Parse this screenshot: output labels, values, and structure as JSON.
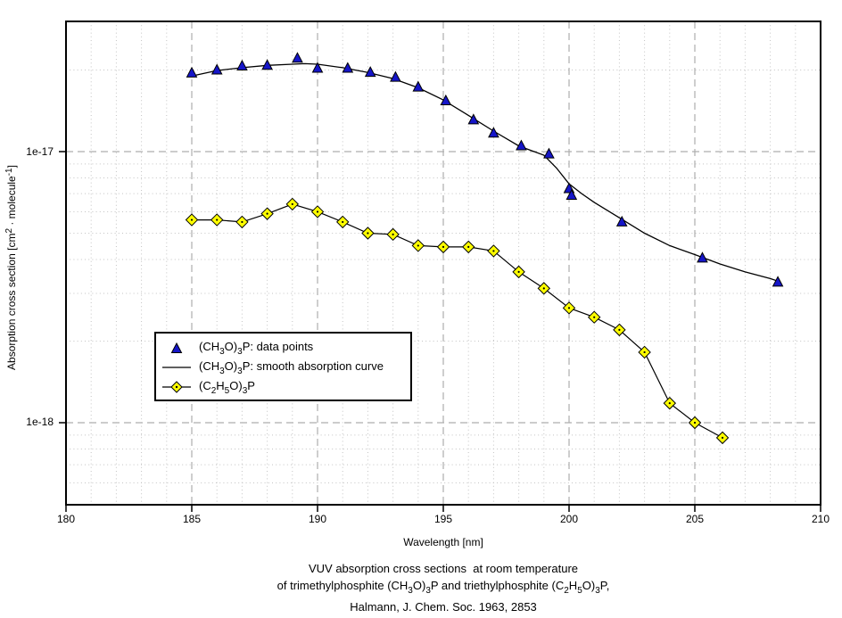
{
  "chart_data": {
    "type": "line",
    "y_scale": "log",
    "title_lines": [
      "VUV absorption cross sections  at room temperature",
      "of trimethylphosphite (CH~3~O)~3~P and triethylphosphite (C~2~H~5~O)~3~P,",
      "Halmann, J. Chem. Soc. 1963, 2853"
    ],
    "xlabel": "Wavelength [nm]",
    "ylabel_rich": "Absorption cross section [cm^2^ · molecule^-1^]",
    "x_axis": {
      "min": 180,
      "max": 210,
      "minor_step": 1,
      "ticks": [
        180,
        185,
        190,
        195,
        200,
        205,
        210
      ],
      "tick_labels": [
        "180",
        "185",
        "190",
        "195",
        "200",
        "205",
        "210"
      ]
    },
    "y_axis": {
      "min": 5e-19,
      "max": 3e-17,
      "major_ticks": [
        {
          "value": 1e-17,
          "label": "1e-17"
        },
        {
          "value": 1e-18,
          "label": "1e-18"
        }
      ],
      "minor_lines": [
        2e-17,
        9e-18,
        8e-18,
        7e-18,
        6e-18,
        5e-18,
        4e-18,
        3e-18,
        2e-18,
        9e-19,
        8e-19,
        7e-19,
        6e-19
      ]
    },
    "grid": "on",
    "legend_position": "inside lower-left",
    "series": [
      {
        "name": "trimethylphosphite data points",
        "legend_rich": "(CH~3~O)~3~P: data points",
        "marker": "triangle",
        "line": false,
        "points": [
          [
            185,
            1.95e-17
          ],
          [
            186,
            2e-17
          ],
          [
            187,
            2.07e-17
          ],
          [
            188,
            2.08e-17
          ],
          [
            189.2,
            2.21e-17
          ],
          [
            190,
            2.03e-17
          ],
          [
            191.2,
            2.03e-17
          ],
          [
            192.1,
            1.96e-17
          ],
          [
            193.1,
            1.88e-17
          ],
          [
            194,
            1.73e-17
          ],
          [
            195.1,
            1.54e-17
          ],
          [
            196.2,
            1.31e-17
          ],
          [
            197,
            1.17e-17
          ],
          [
            198.1,
            1.05e-17
          ],
          [
            199.2,
            9.8e-18
          ],
          [
            200,
            7.3e-18
          ],
          [
            200.1,
            6.9e-18
          ],
          [
            202.1,
            5.5e-18
          ],
          [
            205.3,
            4.05e-18
          ],
          [
            208.3,
            3.3e-18
          ]
        ]
      },
      {
        "name": "trimethylphosphite smooth absorption curve",
        "legend_rich": "(CH~3~O)~3~P: smooth absorption curve",
        "marker": "none",
        "line": true,
        "points": [
          [
            185,
            1.9e-17
          ],
          [
            186,
            1.99e-17
          ],
          [
            187,
            2.04e-17
          ],
          [
            188,
            2.08e-17
          ],
          [
            189,
            2.1e-17
          ],
          [
            189.5,
            2.11e-17
          ],
          [
            190,
            2.1e-17
          ],
          [
            191,
            2.04e-17
          ],
          [
            192,
            1.96e-17
          ],
          [
            193,
            1.86e-17
          ],
          [
            194,
            1.72e-17
          ],
          [
            195,
            1.55e-17
          ],
          [
            196,
            1.36e-17
          ],
          [
            197,
            1.19e-17
          ],
          [
            198,
            1.05e-17
          ],
          [
            199,
            9.7e-18
          ],
          [
            199.5,
            8.7e-18
          ],
          [
            200,
            7.6e-18
          ],
          [
            200.5,
            7e-18
          ],
          [
            201,
            6.5e-18
          ],
          [
            202,
            5.7e-18
          ],
          [
            203,
            5e-18
          ],
          [
            204,
            4.5e-18
          ],
          [
            205,
            4.17e-18
          ],
          [
            206,
            3.85e-18
          ],
          [
            207,
            3.6e-18
          ],
          [
            208,
            3.4e-18
          ],
          [
            208.3,
            3.33e-18
          ]
        ]
      },
      {
        "name": "triethylphosphite",
        "legend_rich": "(C~2~H~5~O)~3~P",
        "marker": "diamond",
        "line": true,
        "points": [
          [
            185,
            5.6e-18
          ],
          [
            186,
            5.6e-18
          ],
          [
            187,
            5.5e-18
          ],
          [
            188,
            5.9e-18
          ],
          [
            189,
            6.4e-18
          ],
          [
            190,
            6e-18
          ],
          [
            191,
            5.5e-18
          ],
          [
            192,
            5e-18
          ],
          [
            193,
            4.95e-18
          ],
          [
            194,
            4.5e-18
          ],
          [
            195,
            4.45e-18
          ],
          [
            196,
            4.45e-18
          ],
          [
            197,
            4.3e-18
          ],
          [
            198,
            3.6e-18
          ],
          [
            199,
            3.13e-18
          ],
          [
            200,
            2.65e-18
          ],
          [
            201,
            2.45e-18
          ],
          [
            202,
            2.2e-18
          ],
          [
            203,
            1.82e-18
          ],
          [
            204,
            1.18e-18
          ],
          [
            205,
            1e-18
          ],
          [
            206.1,
            8.8e-19
          ]
        ]
      }
    ],
    "colors": {
      "triangle_fill": "#1515c8",
      "diamond_fill": "#ffff00",
      "marker_outline": "#000000",
      "curve": "#000000",
      "grid_major": "#aeaeae",
      "grid_minor": "#c3c3c3",
      "axis": "#000000",
      "text": "#000000",
      "background": "#ffffff"
    }
  }
}
